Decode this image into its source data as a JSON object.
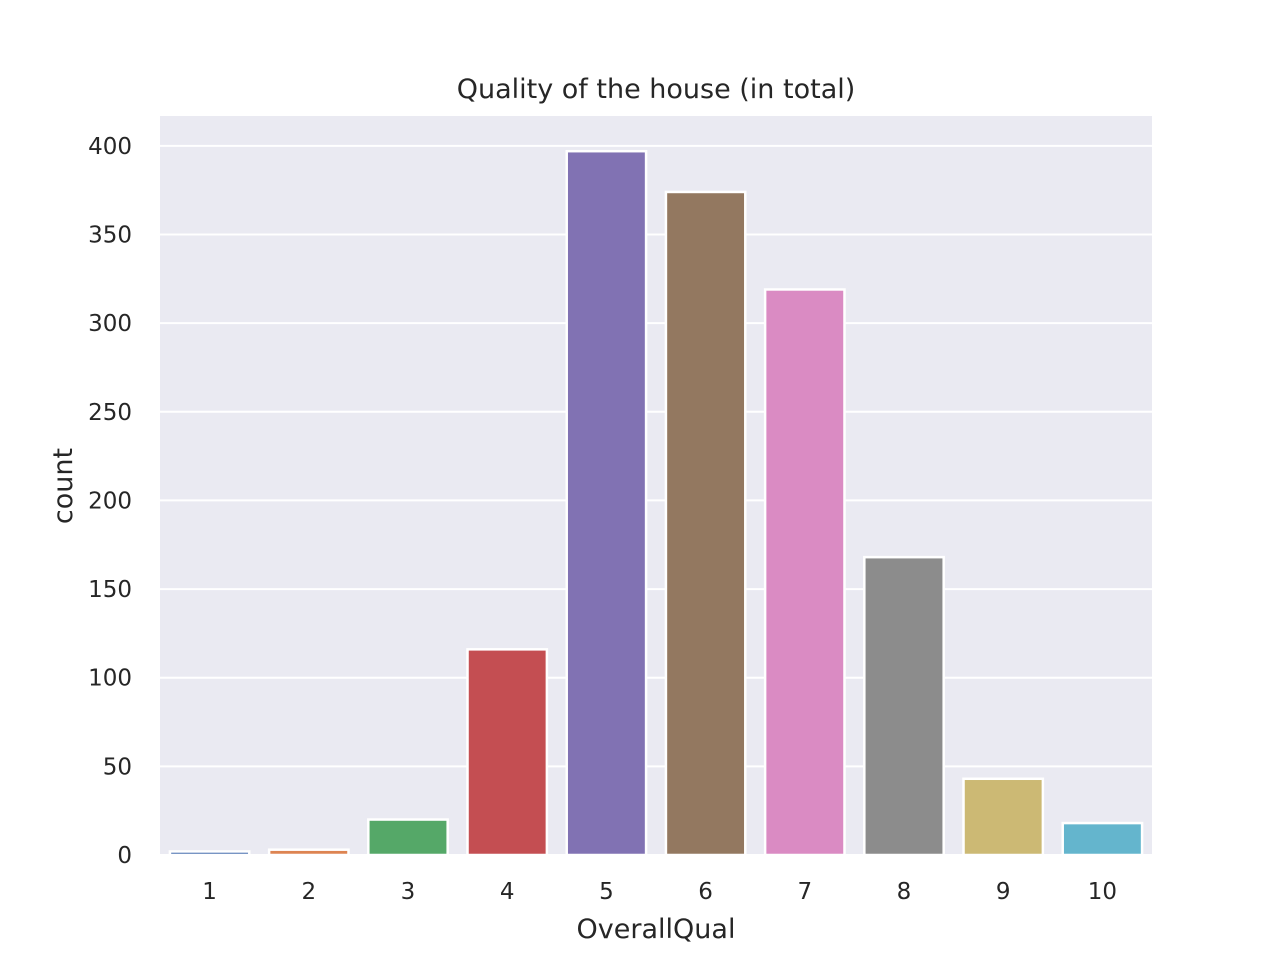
{
  "chart_data": {
    "type": "bar",
    "title": "Quality of the house (in total)",
    "xlabel": "OverallQual",
    "ylabel": "count",
    "categories": [
      "1",
      "2",
      "3",
      "4",
      "5",
      "6",
      "7",
      "8",
      "9",
      "10"
    ],
    "values": [
      2,
      3,
      20,
      116,
      397,
      374,
      319,
      168,
      43,
      18
    ],
    "colors": [
      "#4c72b0",
      "#dd8452",
      "#55a868",
      "#c44e52",
      "#8172b3",
      "#937860",
      "#da8bc3",
      "#8c8c8c",
      "#ccb974",
      "#64b5cd"
    ],
    "ylim": [
      0,
      416.85
    ],
    "yticks": [
      0,
      50,
      100,
      150,
      200,
      250,
      300,
      350,
      400
    ],
    "grid": true,
    "legend": "none",
    "background": "#eaeaf2"
  }
}
